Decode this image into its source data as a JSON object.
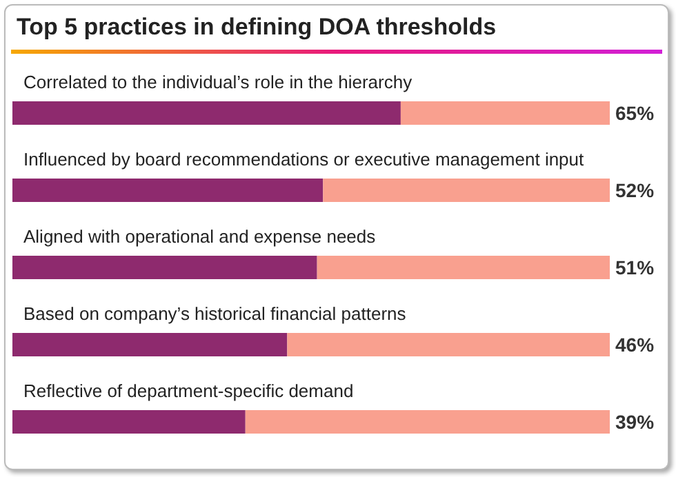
{
  "chart_data": {
    "type": "bar",
    "orientation": "horizontal",
    "stacked": true,
    "title": "Top 5 practices in defining DOA thresholds",
    "categories": [
      "Correlated to the individual’s role in the hierarchy",
      "Influenced by board recommendations or executive management input",
      "Aligned with operational and expense needs",
      "Based on company’s historical financial patterns",
      "Reflective of department-specific demand"
    ],
    "series": [
      {
        "color": "#8e2a6e",
        "values": [
          65,
          52,
          51,
          46,
          39
        ],
        "value_labels": [
          "65%",
          "52%",
          "51%",
          "46%",
          "39%"
        ]
      },
      {
        "color": "#f9a08f",
        "values": [
          35,
          48,
          49,
          54,
          61
        ]
      }
    ],
    "xlim": [
      0,
      100
    ],
    "tick_labels": false
  }
}
